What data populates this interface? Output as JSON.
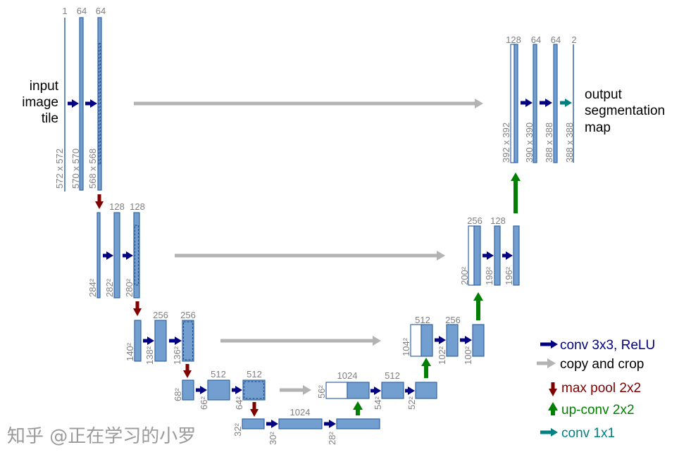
{
  "colors": {
    "feature_map_fill": "#729fcf",
    "feature_map_stroke": "#3465a4",
    "conv": "#000080",
    "copy": "#b3b3b3",
    "maxpool": "#800000",
    "upconv": "#008000",
    "conv1x1": "#008080",
    "label": "#808080"
  },
  "input_label": [
    "input",
    "image",
    "tile"
  ],
  "output_label": [
    "output",
    "segmentation",
    "map"
  ],
  "encoder": [
    {
      "channels": [
        "1",
        "64",
        "64"
      ],
      "sizes": [
        "572 x 572",
        "570 x 570",
        "568 x 568"
      ]
    },
    {
      "channels": [
        "128",
        "128"
      ],
      "sizes": [
        "284²",
        "282²",
        "280²"
      ]
    },
    {
      "channels": [
        "256",
        "256"
      ],
      "sizes": [
        "140²",
        "138²",
        "136²"
      ]
    },
    {
      "channels": [
        "512",
        "512"
      ],
      "sizes": [
        "68²",
        "66²",
        "64²"
      ]
    },
    {
      "channels": [
        "1024"
      ],
      "sizes": [
        "32²",
        "30²",
        "28²"
      ]
    }
  ],
  "decoder": [
    {
      "channels": [
        "1024",
        "512"
      ],
      "sizes": [
        "56²",
        "54²",
        "52²"
      ]
    },
    {
      "channels": [
        "512",
        "256"
      ],
      "sizes": [
        "104²",
        "102²",
        "100²"
      ]
    },
    {
      "channels": [
        "256",
        "128"
      ],
      "sizes": [
        "200²",
        "198²",
        "196²"
      ]
    },
    {
      "channels": [
        "128",
        "64",
        "64",
        "2"
      ],
      "sizes": [
        "392 x 392",
        "390 x 390",
        "388 x 388",
        "388 x 388"
      ]
    }
  ],
  "legend": {
    "conv": "conv 3x3, ReLU",
    "copy": "copy and crop",
    "maxpool": "max pool 2x2",
    "upconv": "up-conv 2x2",
    "conv1x1": "conv 1x1"
  },
  "watermark": "知乎 @正在学习的小罗"
}
